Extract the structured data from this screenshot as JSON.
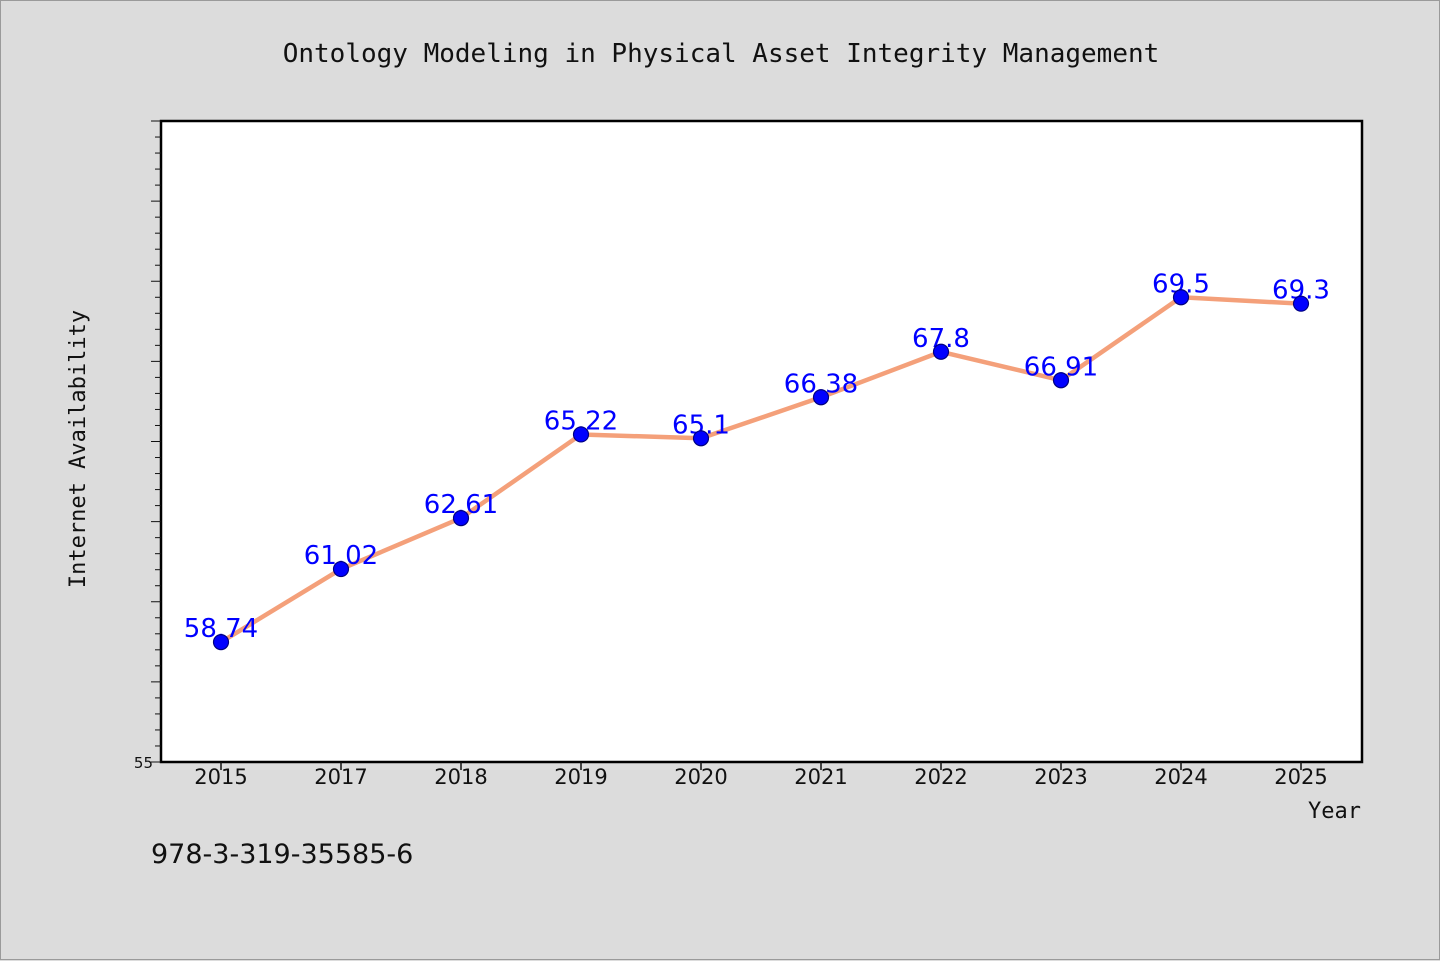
{
  "chart_data": {
    "type": "line",
    "title": "Ontology Modeling in Physical Asset Integrity Management",
    "xlabel": "Year",
    "ylabel": "Internet Availability",
    "categories": [
      "2015",
      "2017",
      "2018",
      "2019",
      "2020",
      "2021",
      "2022",
      "2023",
      "2024",
      "2025"
    ],
    "series": [
      {
        "values": [
          58.74,
          61.02,
          62.61,
          65.22,
          65.1,
          66.38,
          67.8,
          66.91,
          69.5,
          69.3
        ],
        "data_labels": [
          "58.74",
          "61.02",
          "62.61",
          "65.22",
          "65.1",
          "66.38",
          "67.8",
          "66.91",
          "69.5",
          "69.3"
        ],
        "line_color": "#f4a07a",
        "marker_color": "#0000ff"
      }
    ],
    "ylim": [
      55,
      75
    ],
    "yticks_labeled": [
      "55"
    ],
    "grid": false,
    "legend": "none",
    "plot_background": "#ffffff",
    "page_background": "#dcdcdc"
  },
  "footer": {
    "isbn": "978-3-319-35585-6"
  }
}
